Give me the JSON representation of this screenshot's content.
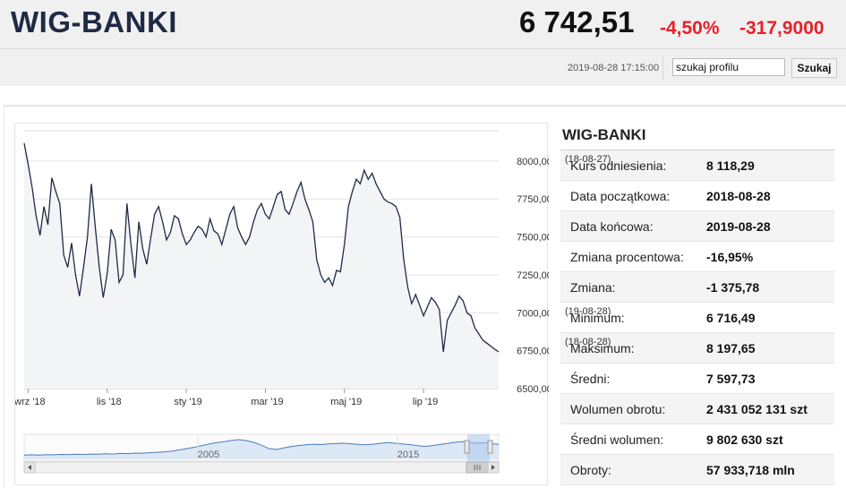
{
  "header": {
    "index_name": "WIG-BANKI",
    "last_value": "6 742,51",
    "change_pct": "-4,50%",
    "change_abs": "-317,9000",
    "timestamp": "2019-08-28 17:15:00",
    "search_value": "szukaj profilu",
    "search_button": "Szukaj"
  },
  "chart_data": {
    "type": "line",
    "y_ticks": [
      "8000,00",
      "7750,00",
      "7500,00",
      "7250,00",
      "7000,00",
      "6750,00",
      "6500,00"
    ],
    "y_tick_values": [
      8000,
      7750,
      7500,
      7250,
      7000,
      6750,
      6500
    ],
    "ylim": [
      6500,
      8200
    ],
    "x_ticks": [
      "wrz '18",
      "lis '18",
      "sty '19",
      "mar '19",
      "maj '19",
      "lip '19"
    ],
    "x_tick_months": [
      0.1,
      2.1,
      4.1,
      6.1,
      8.1,
      10.1
    ],
    "x_range_months": [
      0,
      12
    ],
    "series": [
      {
        "months": [
          0,
          0.1,
          0.2,
          0.3,
          0.4,
          0.5,
          0.6,
          0.7,
          0.8,
          0.9,
          1.0,
          1.1,
          1.2,
          1.3,
          1.4,
          1.5,
          1.6,
          1.7,
          1.8,
          1.9,
          2.0,
          2.1,
          2.2,
          2.3,
          2.4,
          2.5,
          2.6,
          2.7,
          2.8,
          2.9,
          3.0,
          3.1,
          3.2,
          3.3,
          3.4,
          3.5,
          3.6,
          3.7,
          3.8,
          3.9,
          4.0,
          4.1,
          4.2,
          4.3,
          4.4,
          4.5,
          4.6,
          4.7,
          4.8,
          4.9,
          5.0,
          5.1,
          5.2,
          5.3,
          5.4,
          5.5,
          5.6,
          5.7,
          5.8,
          5.9,
          6.0,
          6.1,
          6.2,
          6.3,
          6.4,
          6.5,
          6.6,
          6.7,
          6.8,
          6.9,
          7.0,
          7.1,
          7.2,
          7.3,
          7.4,
          7.5,
          7.6,
          7.7,
          7.8,
          7.9,
          8.0,
          8.1,
          8.2,
          8.3,
          8.4,
          8.5,
          8.6,
          8.7,
          8.8,
          8.9,
          9.0,
          9.1,
          9.2,
          9.3,
          9.4,
          9.5,
          9.6,
          9.7,
          9.8,
          9.9,
          10.0,
          10.1,
          10.2,
          10.3,
          10.4,
          10.5,
          10.6,
          10.7,
          10.8,
          10.9,
          11.0,
          11.1,
          11.2,
          11.3,
          11.4,
          11.5,
          11.6,
          11.7,
          11.8,
          11.9,
          12.0
        ],
        "values": [
          8118,
          7980,
          7830,
          7640,
          7510,
          7700,
          7580,
          7890,
          7800,
          7720,
          7380,
          7300,
          7460,
          7250,
          7110,
          7300,
          7500,
          7850,
          7560,
          7300,
          7100,
          7260,
          7550,
          7480,
          7200,
          7250,
          7720,
          7450,
          7230,
          7600,
          7420,
          7320,
          7490,
          7650,
          7700,
          7600,
          7480,
          7530,
          7640,
          7620,
          7520,
          7450,
          7480,
          7530,
          7570,
          7550,
          7500,
          7620,
          7540,
          7520,
          7450,
          7550,
          7650,
          7700,
          7560,
          7500,
          7450,
          7500,
          7600,
          7680,
          7720,
          7650,
          7620,
          7700,
          7780,
          7800,
          7680,
          7650,
          7720,
          7800,
          7860,
          7750,
          7680,
          7600,
          7350,
          7250,
          7200,
          7230,
          7180,
          7280,
          7270,
          7450,
          7700,
          7800,
          7880,
          7850,
          7940,
          7880,
          7920,
          7850,
          7800,
          7750,
          7730,
          7720,
          7700,
          7630,
          7350,
          7170,
          7060,
          7120,
          7050,
          6980,
          7040,
          7100,
          7070,
          7020,
          6742,
          6950,
          7000,
          7050,
          7110,
          7080,
          7000,
          6980,
          6900,
          6860,
          6820,
          6800,
          6780,
          6760,
          6742
        ]
      }
    ],
    "navigator": {
      "x_ticks": [
        "2005",
        "2015"
      ],
      "values": [
        0.22,
        0.23,
        0.22,
        0.24,
        0.23,
        0.25,
        0.24,
        0.26,
        0.25,
        0.27,
        0.26,
        0.28,
        0.27,
        0.3,
        0.29,
        0.32,
        0.31,
        0.34,
        0.36,
        0.38,
        0.42,
        0.48,
        0.55,
        0.62,
        0.7,
        0.78,
        0.85,
        0.9,
        0.96,
        1.0,
        0.95,
        0.86,
        0.72,
        0.55,
        0.5,
        0.58,
        0.65,
        0.7,
        0.74,
        0.77,
        0.75,
        0.78,
        0.8,
        0.82,
        0.79,
        0.76,
        0.74,
        0.77,
        0.81,
        0.85,
        0.82,
        0.78,
        0.75,
        0.7,
        0.66,
        0.69,
        0.75,
        0.8,
        0.86,
        0.9,
        0.87,
        0.82,
        0.84,
        0.8,
        0.76
      ]
    }
  },
  "side": {
    "title": "WIG-BANKI",
    "rows": [
      {
        "label": "Kurs odniesienia:",
        "value": "8 118,29",
        "note": "(18-08-27)"
      },
      {
        "label": "Data początkowa:",
        "value": "2018-08-28",
        "note": ""
      },
      {
        "label": "Data końcowa:",
        "value": "2019-08-28",
        "note": ""
      },
      {
        "label": "Zmiana procentowa:",
        "value": "-16,95%",
        "note": ""
      },
      {
        "label": "Zmiana:",
        "value": "-1 375,78",
        "note": ""
      },
      {
        "label": "Minimum:",
        "value": "6 716,49",
        "note": "(19-08-28)"
      },
      {
        "label": "Maksimum:",
        "value": "8 197,65",
        "note": "(18-08-28)"
      },
      {
        "label": "Średni:",
        "value": "7 597,73",
        "note": ""
      },
      {
        "label": "Wolumen obrotu:",
        "value": "2 431 052 131 szt",
        "note": ""
      },
      {
        "label": "Średni wolumen:",
        "value": "9 802 630 szt",
        "note": ""
      },
      {
        "label": "Obroty:",
        "value": "57 933,718 mln",
        "note": ""
      }
    ]
  },
  "colors": {
    "line": "#1f2a44",
    "area": "#f2f4f6",
    "navigator_line": "#4a7cc0",
    "navigator_area": "#dde8f5",
    "accent_red": "#e8212a",
    "title_navy": "#1f2a44"
  },
  "icons": {
    "scroll_left": "chevron-left-icon",
    "scroll_right": "chevron-right-icon",
    "grip": "grip-icon"
  }
}
